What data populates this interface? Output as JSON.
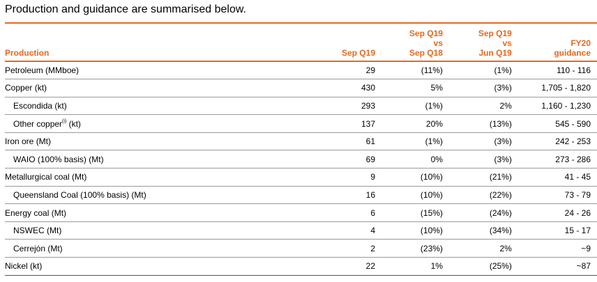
{
  "intro": "Production and guidance are summarised below.",
  "columns": {
    "label": "Production",
    "c1": "Sep Q19",
    "c2": [
      "Sep Q19",
      "vs",
      "Sep Q18"
    ],
    "c3": [
      "Sep Q19",
      "vs",
      "Jun Q19"
    ],
    "c4": [
      "FY20",
      "guidance"
    ]
  },
  "rows": [
    {
      "label": "Petroleum (MMboe)",
      "v1": "29",
      "v2": "(11%)",
      "v3": "(1%)",
      "v4": "110 - 116"
    },
    {
      "label": "Copper (kt)",
      "v1": "430",
      "v2": "5%",
      "v3": "(3%)",
      "v4": "1,705 - 1,820"
    },
    {
      "label": "Escondida (kt)",
      "v1": "293",
      "v2": "(1%)",
      "v3": "2%",
      "v4": "1,160 - 1,230"
    },
    {
      "label": "Other copper",
      "sup": "(i)",
      "label_tail": " (kt)",
      "v1": "137",
      "v2": "20%",
      "v3": "(13%)",
      "v4": "545 - 590"
    },
    {
      "label": "Iron ore (Mt)",
      "v1": "61",
      "v2": "(1%)",
      "v3": "(3%)",
      "v4": "242 - 253"
    },
    {
      "label": "WAIO (100% basis) (Mt)",
      "v1": "69",
      "v2": "0%",
      "v3": "(3%)",
      "v4": "273 - 286"
    },
    {
      "label": "Metallurgical coal (Mt)",
      "v1": "9",
      "v2": "(10%)",
      "v3": "(21%)",
      "v4": "41 - 45"
    },
    {
      "label": "Queensland Coal (100% basis) (Mt)",
      "v1": "16",
      "v2": "(10%)",
      "v3": "(22%)",
      "v4": "73 - 79"
    },
    {
      "label": "Energy coal (Mt)",
      "v1": "6",
      "v2": "(15%)",
      "v3": "(24%)",
      "v4": "24 - 26"
    },
    {
      "label": "NSWEC (Mt)",
      "v1": "4",
      "v2": "(10%)",
      "v3": "(34%)",
      "v4": "15 - 17"
    },
    {
      "label": "Cerrejón (Mt)",
      "v1": "2",
      "v2": "(23%)",
      "v3": "2%",
      "v4": "~9"
    },
    {
      "label": "Nickel (kt)",
      "v1": "22",
      "v2": "1%",
      "v3": "(25%)",
      "v4": "~87"
    }
  ],
  "colors": {
    "accent": "#E3691E",
    "rule": "#9a9a9a"
  }
}
